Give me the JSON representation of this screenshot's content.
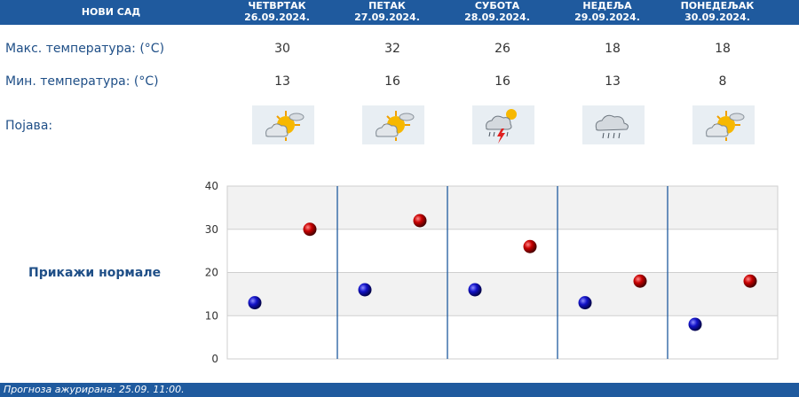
{
  "header": {
    "city": "НОВИ САД",
    "days": [
      {
        "name": "ЧЕТВРТАК",
        "date": "26.09.2024."
      },
      {
        "name": "ПЕТАК",
        "date": "27.09.2024."
      },
      {
        "name": "СУБОТА",
        "date": "28.09.2024."
      },
      {
        "name": "НЕДЕЉА",
        "date": "29.09.2024."
      },
      {
        "name": "ПОНЕДЕЉАК",
        "date": "30.09.2024."
      }
    ]
  },
  "rows": {
    "max_label": "Макс. температура: (°C)",
    "min_label": "Мин. температура: (°C)",
    "phenomenon_label": "Појава:",
    "max_values": [
      "30",
      "32",
      "26",
      "18",
      "18"
    ],
    "min_values": [
      "13",
      "16",
      "16",
      "13",
      "8"
    ],
    "icons": [
      "partly-cloudy-sun-icon",
      "partly-cloudy-sun-icon",
      "thunderstorm-icon",
      "rain-cloud-icon",
      "partly-cloudy-sun-icon"
    ]
  },
  "normals_link": "Прикажи нормале",
  "footer": "Прогноза ажурирана:  25.09.  11:00.",
  "chart_data": {
    "type": "scatter",
    "categories": [
      "26.09.2024.",
      "27.09.2024.",
      "28.09.2024.",
      "29.09.2024.",
      "30.09.2024."
    ],
    "ylim": [
      0,
      40
    ],
    "yticks": [
      "0",
      "10",
      "20",
      "30",
      "40"
    ],
    "series": [
      {
        "values": [
          13,
          16,
          16,
          13,
          8
        ],
        "color": "#1010c0"
      },
      {
        "values": [
          30,
          32,
          26,
          18,
          18
        ],
        "color": "#c00000"
      }
    ],
    "grid": true
  }
}
